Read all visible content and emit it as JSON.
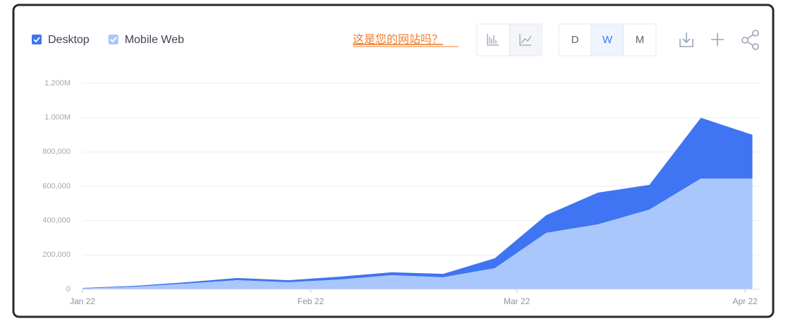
{
  "chart_data": {
    "type": "area",
    "stacked": true,
    "grid": true,
    "legend": "top-left",
    "x": [
      0,
      7,
      14,
      21,
      28,
      35,
      42,
      49,
      56,
      63,
      70,
      77,
      84,
      91
    ],
    "xlim": [
      0,
      92
    ],
    "xticks": [
      {
        "value": 0,
        "label": "Jan 22"
      },
      {
        "value": 31,
        "label": "Feb 22"
      },
      {
        "value": 59,
        "label": "Mar 22"
      },
      {
        "value": 90,
        "label": "Apr 22"
      }
    ],
    "ylim": [
      0,
      1200000
    ],
    "yticks": [
      0,
      {
        "value": 200000,
        "label": "200,000"
      },
      {
        "value": 400000,
        "label": "400,000"
      },
      {
        "value": 600000,
        "label": "600,000"
      },
      {
        "value": 800000,
        "label": "800,000"
      },
      {
        "value": 1000000,
        "label": "1.000M"
      },
      {
        "value": 1200000,
        "label": "1.200M"
      }
    ],
    "series": [
      {
        "name": "Desktop",
        "color": "#3f74f2",
        "values": [
          3000,
          5000,
          8000,
          13000,
          12000,
          17000,
          17000,
          20000,
          58000,
          103000,
          185000,
          144000,
          354000,
          255000
        ]
      },
      {
        "name": "Mobile Web",
        "color": "#a9c7fb",
        "values": [
          5000,
          15000,
          33000,
          53000,
          41000,
          57000,
          82000,
          70000,
          123000,
          329000,
          378000,
          464000,
          645000,
          645000
        ]
      }
    ]
  },
  "toolbar": {
    "link": "这是您的网站吗？",
    "granularity": [
      "D",
      "W",
      "M"
    ],
    "selected": "W"
  }
}
